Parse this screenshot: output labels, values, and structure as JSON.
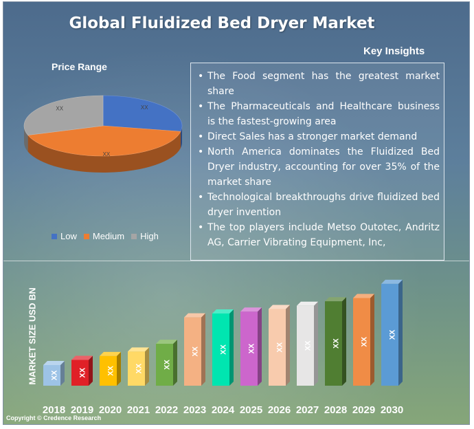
{
  "title": "Global Fluidized Bed Dryer Market",
  "insights": {
    "title": "Key Insights",
    "items": [
      "The Food segment has the greatest market share",
      "The Pharmaceuticals and Healthcare business is the fastest-growing area",
      "Direct Sales has a stronger market demand",
      "North America dominates the Fluidized Bed Dryer industry, accounting for over 35% of the market share",
      "Technological breakthroughs drive fluidized bed dryer invention",
      "The top players include Metso Outotec, Andritz AG, Carrier Vibrating Equipment, Inc,"
    ]
  },
  "copyright": "Copyright © Credence Research",
  "chart_data": [
    {
      "type": "pie",
      "title": "Price Range",
      "labels": [
        "Low",
        "Medium",
        "High"
      ],
      "values": [
        28,
        42,
        30
      ],
      "data_labels": [
        "XX",
        "XX",
        "XX"
      ],
      "colors": [
        "#4472c4",
        "#ed7d31",
        "#a5a5a5"
      ],
      "legend": "bottom"
    },
    {
      "type": "bar",
      "title": "",
      "ylabel": "MARKET SIZE USD BN",
      "categories": [
        "2018",
        "2019",
        "2020",
        "2021",
        "2022",
        "2023",
        "2024",
        "2025",
        "2026",
        "2027",
        "2028",
        "2029",
        "2030"
      ],
      "values": [
        3.2,
        4.0,
        4.6,
        5.3,
        6.5,
        10.6,
        11.2,
        11.5,
        11.9,
        12.4,
        13.1,
        13.6,
        15.8
      ],
      "data_labels": [
        "XX",
        "XX",
        "XX",
        "XX",
        "XX",
        "XX",
        "XX",
        "XX",
        "XX",
        "XX",
        "XX",
        "XX",
        "XX"
      ],
      "colors": [
        "#9dc3e6",
        "#e02027",
        "#ffc000",
        "#ffd966",
        "#70ad47",
        "#f4b183",
        "#00e5b0",
        "#cc66cc",
        "#f8cbad",
        "#e7e6e6",
        "#507e32",
        "#f08c46",
        "#5b9bd5"
      ],
      "ylim": [
        0,
        16
      ]
    }
  ]
}
